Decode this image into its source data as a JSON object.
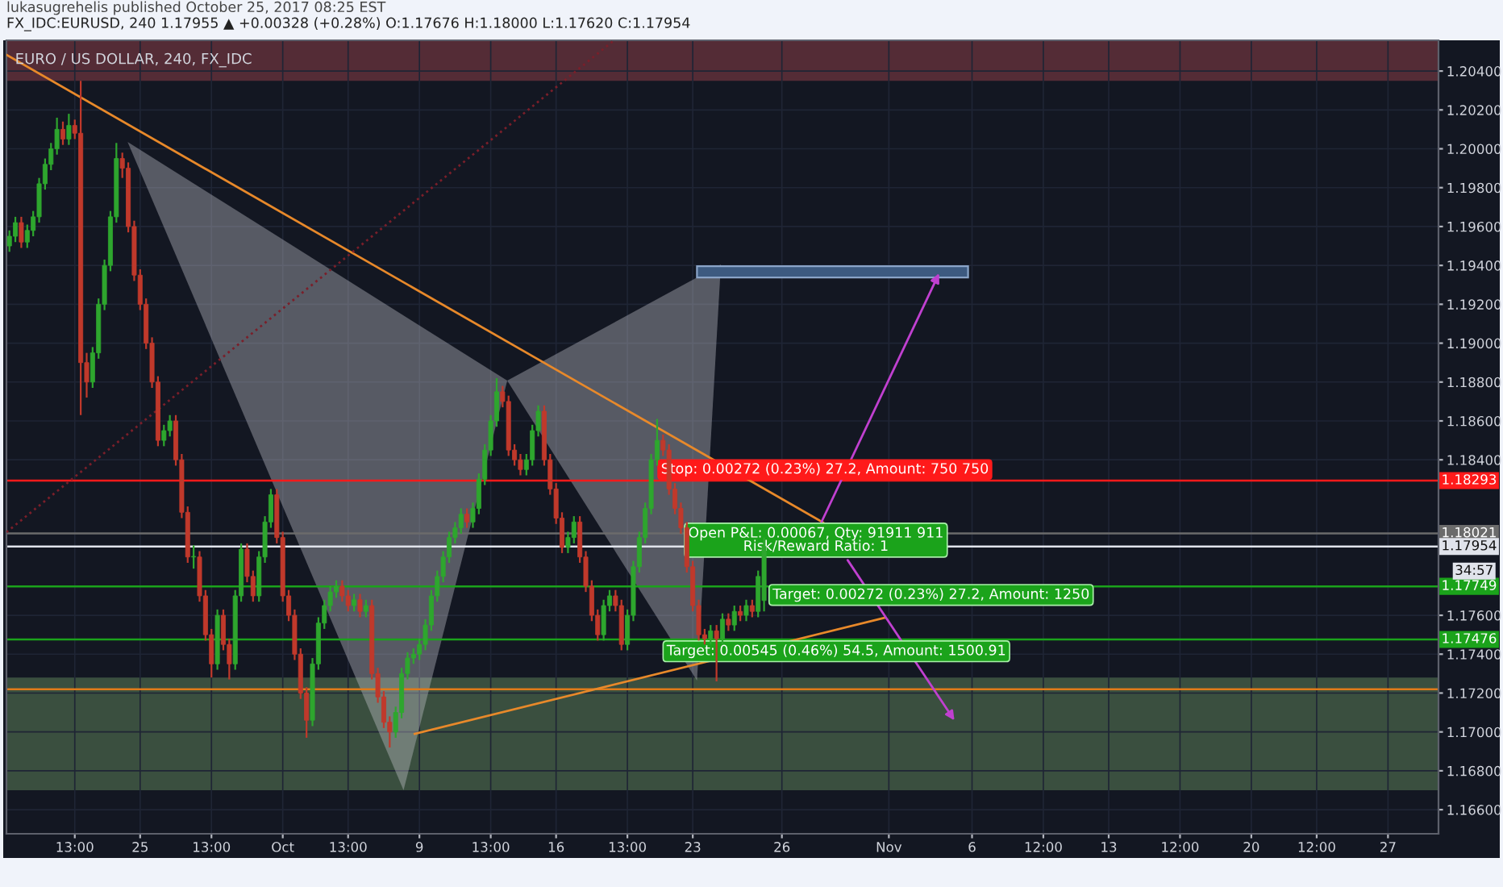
{
  "chart_data": {
    "type": "candlestick",
    "title": "EURO / US DOLLAR, 240, FX_IDC",
    "subtitle": "FX_IDC:EURUSD, 240 1.17955 ▲ +0.00328 (+0.28%) O:1.17676 H:1.18000 L:1.17620 C:1.17954",
    "annotations": [
      "lukasugrehelis published October 25, 2017 08:25 EST",
      "34:57",
      "Stop: 0.00272 (0.23%) 27.2, Amount: 750 750",
      "Open P&L: 0.00067, Qty: 91911 911\nRisk/Reward Ratio: 1",
      "Target: 0.00272 (0.23%) 27.2, Amount: 1250",
      "Target: 0.00545 (0.46%) 54.5, Amount: 1500.91"
    ],
    "categories": [
      null,
      null,
      null,
      null,
      null,
      null,
      null,
      null,
      null,
      null,
      null,
      "13:00",
      null,
      null,
      null,
      null,
      null,
      null,
      null,
      null,
      null,
      null,
      "25",
      null,
      null,
      null,
      null,
      null,
      null,
      null,
      null,
      null,
      null,
      null,
      "13:00",
      null,
      null,
      null,
      null,
      null,
      null,
      null,
      null,
      null,
      null,
      null,
      "Oct",
      null,
      null,
      null,
      null,
      null,
      null,
      null,
      null,
      null,
      null,
      "13:00",
      null,
      null,
      null,
      null,
      null,
      null,
      null,
      null,
      null,
      null,
      null,
      "9",
      null,
      null,
      null,
      null,
      null,
      null,
      null,
      null,
      null,
      null,
      null,
      "13:00",
      null,
      null,
      null,
      null,
      null,
      null,
      null,
      null,
      null,
      null,
      "16",
      null,
      null,
      null,
      null,
      null,
      null,
      null,
      null,
      null,
      null,
      null,
      "13:00",
      null,
      null,
      null,
      null,
      null,
      null,
      null,
      null,
      null,
      null,
      "23",
      null,
      null,
      null,
      null,
      null,
      null,
      null,
      null,
      null,
      null,
      null,
      null,
      null,
      null,
      "26",
      null,
      null,
      null,
      null,
      null,
      null,
      null,
      null,
      null,
      null,
      null,
      null,
      null,
      null,
      null,
      null,
      null,
      "Nov",
      null,
      null,
      null,
      null,
      null,
      null,
      null,
      null,
      null,
      null,
      null,
      null,
      null,
      "6",
      null,
      null,
      null,
      null,
      null,
      null,
      null,
      null,
      null,
      null,
      null,
      "12:00",
      null,
      null,
      null,
      null,
      null,
      null,
      null,
      null,
      null,
      null,
      "13",
      null,
      null,
      null,
      null,
      null,
      null,
      null,
      null,
      null,
      null,
      null,
      "12:00",
      null,
      null,
      null,
      null,
      null,
      null,
      null,
      null,
      null,
      null,
      null,
      "20",
      null,
      null,
      null,
      null,
      null,
      null,
      null,
      null,
      null,
      null,
      "12:00",
      null,
      null,
      null,
      null,
      null,
      null,
      null,
      null,
      null,
      null,
      null,
      "27",
      null,
      null,
      null,
      null,
      null,
      null,
      null,
      null
    ],
    "ohlc": [
      [
        1.195,
        1.1958,
        1.1947,
        1.1955
      ],
      [
        1.1955,
        1.1965,
        1.1952,
        1.1962
      ],
      [
        1.1962,
        1.1965,
        1.1949,
        1.1952
      ],
      [
        1.1952,
        1.1961,
        1.1949,
        1.1958
      ],
      [
        1.1958,
        1.1968,
        1.1955,
        1.1965
      ],
      [
        1.1965,
        1.1985,
        1.1962,
        1.1982
      ],
      [
        1.1982,
        1.1995,
        1.1979,
        1.1992
      ],
      [
        1.1992,
        1.2003,
        1.1989,
        1.2
      ],
      [
        1.2,
        1.2016,
        1.1997,
        1.201
      ],
      [
        1.201,
        1.2014,
        1.2002,
        1.2005
      ],
      [
        1.2005,
        1.2018,
        1.2002,
        1.2012
      ],
      [
        1.2012,
        1.2015,
        1.2005,
        1.2008
      ],
      [
        1.2008,
        1.2035,
        1.1863,
        1.189
      ],
      [
        1.189,
        1.1895,
        1.1872,
        1.188
      ],
      [
        1.188,
        1.1898,
        1.1877,
        1.1895
      ],
      [
        1.1895,
        1.1923,
        1.1892,
        1.192
      ],
      [
        1.192,
        1.1943,
        1.1917,
        1.194
      ],
      [
        1.194,
        1.1968,
        1.1937,
        1.1965
      ],
      [
        1.1965,
        1.2003,
        1.1962,
        1.1995
      ],
      [
        1.1995,
        1.1998,
        1.1985,
        1.199
      ],
      [
        1.199,
        1.1993,
        1.1957,
        1.196
      ],
      [
        1.196,
        1.1963,
        1.1932,
        1.1935
      ],
      [
        1.1935,
        1.1938,
        1.1917,
        1.192
      ],
      [
        1.192,
        1.1923,
        1.1897,
        1.19
      ],
      [
        1.19,
        1.1903,
        1.1877,
        1.188
      ],
      [
        1.188,
        1.1883,
        1.1847,
        1.185
      ],
      [
        1.185,
        1.1858,
        1.1847,
        1.1855
      ],
      [
        1.1855,
        1.1863,
        1.1852,
        1.186
      ],
      [
        1.186,
        1.1863,
        1.1837,
        1.184
      ],
      [
        1.184,
        1.1843,
        1.181,
        1.1813
      ],
      [
        1.1813,
        1.1816,
        1.1787,
        1.179
      ],
      [
        1.179,
        1.1796,
        1.1784,
        1.179
      ],
      [
        1.179,
        1.1793,
        1.1767,
        1.177
      ],
      [
        1.177,
        1.1773,
        1.1747,
        1.175
      ],
      [
        1.175,
        1.1753,
        1.1728,
        1.1735
      ],
      [
        1.1735,
        1.1763,
        1.1732,
        1.176
      ],
      [
        1.176,
        1.1763,
        1.1742,
        1.1745
      ],
      [
        1.1745,
        1.1748,
        1.1727,
        1.1735
      ],
      [
        1.1735,
        1.1773,
        1.1732,
        1.177
      ],
      [
        1.177,
        1.1797,
        1.1767,
        1.1794
      ],
      [
        1.1794,
        1.1797,
        1.1777,
        1.178
      ],
      [
        1.178,
        1.1783,
        1.1767,
        1.177
      ],
      [
        1.177,
        1.1793,
        1.1767,
        1.179
      ],
      [
        1.179,
        1.1811,
        1.1787,
        1.1808
      ],
      [
        1.1808,
        1.1825,
        1.1805,
        1.1822
      ],
      [
        1.1822,
        1.1825,
        1.1797,
        1.18
      ],
      [
        1.18,
        1.1803,
        1.1767,
        1.177
      ],
      [
        1.177,
        1.1773,
        1.1757,
        1.176
      ],
      [
        1.176,
        1.1763,
        1.1737,
        1.174
      ],
      [
        1.174,
        1.1743,
        1.1717,
        1.172
      ],
      [
        1.172,
        1.1723,
        1.1697,
        1.1706
      ],
      [
        1.1706,
        1.1738,
        1.1703,
        1.1735
      ],
      [
        1.1735,
        1.1759,
        1.1732,
        1.1756
      ],
      [
        1.1756,
        1.1768,
        1.1753,
        1.1765
      ],
      [
        1.1765,
        1.1775,
        1.1762,
        1.1772
      ],
      [
        1.1772,
        1.1778,
        1.1769,
        1.1775
      ],
      [
        1.1775,
        1.1778,
        1.1767,
        1.177
      ],
      [
        1.177,
        1.1773,
        1.1762,
        1.1765
      ],
      [
        1.1765,
        1.1771,
        1.1762,
        1.1768
      ],
      [
        1.1768,
        1.1771,
        1.1759,
        1.1762
      ],
      [
        1.1762,
        1.1768,
        1.1759,
        1.1765
      ],
      [
        1.1765,
        1.1768,
        1.1727,
        1.173
      ],
      [
        1.173,
        1.1733,
        1.1715,
        1.1718
      ],
      [
        1.1718,
        1.1721,
        1.1702,
        1.1705
      ],
      [
        1.1705,
        1.1708,
        1.1692,
        1.17
      ],
      [
        1.17,
        1.1713,
        1.1697,
        1.171
      ],
      [
        1.171,
        1.1733,
        1.1707,
        1.173
      ],
      [
        1.173,
        1.1741,
        1.1727,
        1.1738
      ],
      [
        1.1738,
        1.1743,
        1.1735,
        1.174
      ],
      [
        1.174,
        1.1748,
        1.1737,
        1.1745
      ],
      [
        1.1745,
        1.1758,
        1.1742,
        1.1755
      ],
      [
        1.1755,
        1.1773,
        1.1752,
        1.177
      ],
      [
        1.177,
        1.1783,
        1.1767,
        1.178
      ],
      [
        1.178,
        1.1793,
        1.1777,
        1.179
      ],
      [
        1.179,
        1.1803,
        1.1787,
        1.18
      ],
      [
        1.18,
        1.1808,
        1.1797,
        1.1805
      ],
      [
        1.1805,
        1.1815,
        1.1802,
        1.1812
      ],
      [
        1.1812,
        1.1815,
        1.1805,
        1.1808
      ],
      [
        1.1808,
        1.1818,
        1.1805,
        1.1815
      ],
      [
        1.1815,
        1.1833,
        1.1812,
        1.183
      ],
      [
        1.183,
        1.1848,
        1.1827,
        1.1845
      ],
      [
        1.1845,
        1.1863,
        1.1842,
        1.186
      ],
      [
        1.186,
        1.1882,
        1.1857,
        1.1875
      ],
      [
        1.1875,
        1.1878,
        1.1867,
        1.187
      ],
      [
        1.187,
        1.1873,
        1.1842,
        1.1845
      ],
      [
        1.1845,
        1.1848,
        1.1837,
        1.184
      ],
      [
        1.184,
        1.1843,
        1.1832,
        1.1835
      ],
      [
        1.1835,
        1.1843,
        1.1832,
        1.184
      ],
      [
        1.184,
        1.1858,
        1.1837,
        1.1855
      ],
      [
        1.1855,
        1.1868,
        1.1852,
        1.1865
      ],
      [
        1.1865,
        1.1868,
        1.1837,
        1.184
      ],
      [
        1.184,
        1.1843,
        1.1822,
        1.1825
      ],
      [
        1.1825,
        1.1828,
        1.1807,
        1.181
      ],
      [
        1.181,
        1.1813,
        1.1792,
        1.1795
      ],
      [
        1.1795,
        1.1803,
        1.1792,
        1.18
      ],
      [
        1.18,
        1.1811,
        1.1797,
        1.1808
      ],
      [
        1.1808,
        1.1811,
        1.1787,
        1.179
      ],
      [
        1.179,
        1.1793,
        1.1772,
        1.1775
      ],
      [
        1.1775,
        1.1778,
        1.1757,
        1.176
      ],
      [
        1.176,
        1.1763,
        1.1747,
        1.175
      ],
      [
        1.175,
        1.1768,
        1.1747,
        1.1765
      ],
      [
        1.1765,
        1.1773,
        1.1762,
        1.177
      ],
      [
        1.177,
        1.1773,
        1.1762,
        1.1765
      ],
      [
        1.1765,
        1.1768,
        1.1742,
        1.1745
      ],
      [
        1.1745,
        1.1763,
        1.1742,
        1.176
      ],
      [
        1.176,
        1.1788,
        1.1757,
        1.1785
      ],
      [
        1.1785,
        1.1803,
        1.1782,
        1.18
      ],
      [
        1.18,
        1.1818,
        1.1797,
        1.1815
      ],
      [
        1.1815,
        1.1843,
        1.1812,
        1.184
      ],
      [
        1.184,
        1.1861,
        1.1837,
        1.185
      ],
      [
        1.185,
        1.1853,
        1.1842,
        1.1845
      ],
      [
        1.1845,
        1.1848,
        1.1822,
        1.1825
      ],
      [
        1.1825,
        1.1828,
        1.1812,
        1.1815
      ],
      [
        1.1815,
        1.1818,
        1.1802,
        1.1805
      ],
      [
        1.1805,
        1.1808,
        1.1782,
        1.1785
      ],
      [
        1.1785,
        1.1788,
        1.1762,
        1.1765
      ],
      [
        1.1765,
        1.1768,
        1.1747,
        1.175
      ],
      [
        1.175,
        1.1753,
        1.1745,
        1.1748
      ],
      [
        1.1748,
        1.1755,
        1.1745,
        1.1752
      ],
      [
        1.1752,
        1.1755,
        1.1726,
        1.1748
      ],
      [
        1.1748,
        1.1761,
        1.1745,
        1.1758
      ],
      [
        1.1758,
        1.1761,
        1.1752,
        1.1755
      ],
      [
        1.1755,
        1.1765,
        1.1752,
        1.1762
      ],
      [
        1.1762,
        1.1765,
        1.1757,
        1.176
      ],
      [
        1.176,
        1.1768,
        1.1757,
        1.1765
      ],
      [
        1.1765,
        1.1768,
        1.1759,
        1.1762
      ],
      [
        1.1762,
        1.1783,
        1.1759,
        1.178
      ],
      [
        1.17676,
        1.18,
        1.1762,
        1.17954
      ],
      null,
      null,
      null,
      null,
      null,
      null,
      null,
      null,
      null,
      null,
      null,
      null,
      null,
      null,
      null,
      null,
      null,
      null,
      null,
      null,
      null,
      null,
      null,
      null,
      null,
      null,
      null,
      null,
      null,
      null,
      null,
      null,
      null,
      null,
      null,
      null,
      null,
      null,
      null,
      null,
      null,
      null,
      null,
      null,
      null,
      null,
      null,
      null,
      null,
      null,
      null,
      null,
      null,
      null,
      null,
      null,
      null,
      null,
      null,
      null,
      null,
      null,
      null,
      null,
      null,
      null,
      null,
      null,
      null,
      null,
      null,
      null,
      null,
      null,
      null,
      null,
      null,
      null,
      null,
      null,
      null,
      null,
      null,
      null,
      null,
      null,
      null,
      null,
      null,
      null,
      null,
      null,
      null,
      null,
      null,
      null,
      null,
      null,
      null,
      null,
      null,
      null,
      null,
      null,
      null,
      null,
      null,
      null,
      null,
      null,
      null,
      null,
      null
    ],
    "ylim": [
      1.16476,
      1.20558
    ],
    "yticks": [
      {
        "value": 1.166,
        "label": "1.16600"
      },
      {
        "value": 1.168,
        "label": "1.16800"
      },
      {
        "value": 1.17,
        "label": "1.17000"
      },
      {
        "value": 1.172,
        "label": "1.17200"
      },
      {
        "value": 1.174,
        "label": "1.17400"
      },
      {
        "value": 1.176,
        "label": "1.17600"
      },
      {
        "value": 1.184,
        "label": "1.18400"
      },
      {
        "value": 1.186,
        "label": "1.18600"
      },
      {
        "value": 1.188,
        "label": "1.18800"
      },
      {
        "value": 1.19,
        "label": "1.19000"
      },
      {
        "value": 1.192,
        "label": "1.19200"
      },
      {
        "value": 1.194,
        "label": "1.19400"
      },
      {
        "value": 1.196,
        "label": "1.19600"
      },
      {
        "value": 1.198,
        "label": "1.19800"
      },
      {
        "value": 1.2,
        "label": "1.20000"
      },
      {
        "value": 1.202,
        "label": "1.20200"
      },
      {
        "value": 1.204,
        "label": "1.20400"
      }
    ],
    "ref_lines": [
      {
        "axis": "y",
        "value": 1.18293,
        "label": "1.18293",
        "color": "#ff1a1a"
      },
      {
        "axis": "y",
        "value": 1.18021,
        "label": "1.18021",
        "color": "#6b6b6b"
      },
      {
        "axis": "y",
        "value": 1.17954,
        "label": "1.17954",
        "color": "#e0e3eb"
      },
      {
        "axis": "y",
        "value": 1.17749,
        "label": "1.17749",
        "color": "#1ba31b"
      },
      {
        "axis": "y",
        "value": 1.17476,
        "label": "1.17476",
        "color": "#1ba31b"
      },
      {
        "axis": "y",
        "value": 1.1722,
        "color": "#e07b1a"
      }
    ],
    "bands": [
      {
        "axis": "y",
        "from": 1.2035,
        "to": 1.20558,
        "color": "#5c2f38"
      },
      {
        "axis": "y",
        "from": 1.167,
        "to": 1.1728,
        "color": "#3f5543"
      }
    ],
    "grid": true,
    "legend": false
  }
}
